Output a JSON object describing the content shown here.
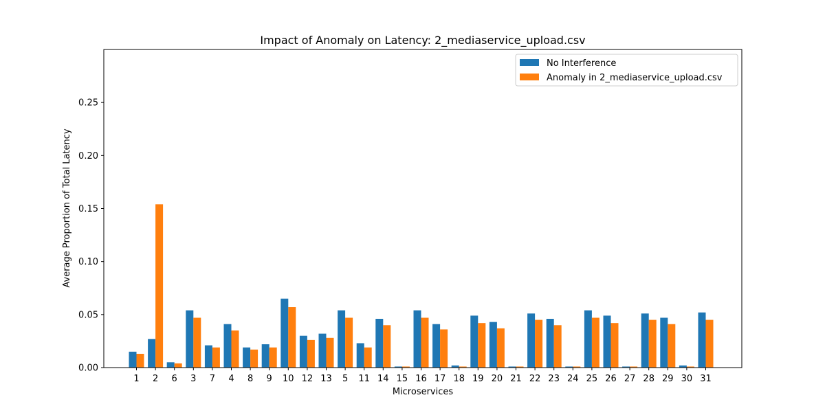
{
  "chart_data": {
    "type": "bar",
    "title": "Impact of Anomaly on Latency: 2_mediaservice_upload.csv",
    "xlabel": "Microservices",
    "ylabel": "Average Proportion of Total Latency",
    "ylim": [
      0,
      0.3
    ],
    "yticks": [
      "0.00",
      "0.05",
      "0.10",
      "0.15",
      "0.20",
      "0.25"
    ],
    "grid": false,
    "legend_position": "top-right",
    "categories": [
      "1",
      "2",
      "6",
      "3",
      "7",
      "4",
      "8",
      "9",
      "10",
      "12",
      "13",
      "5",
      "11",
      "14",
      "15",
      "16",
      "17",
      "18",
      "19",
      "20",
      "21",
      "22",
      "23",
      "24",
      "25",
      "26",
      "27",
      "28",
      "29",
      "30",
      "31"
    ],
    "series": [
      {
        "name": "No Interference",
        "color": "#1f77b4",
        "values": [
          0.015,
          0.027,
          0.005,
          0.054,
          0.021,
          0.041,
          0.019,
          0.022,
          0.065,
          0.03,
          0.032,
          0.054,
          0.023,
          0.046,
          0.001,
          0.054,
          0.041,
          0.002,
          0.049,
          0.043,
          0.001,
          0.051,
          0.046,
          0.001,
          0.054,
          0.049,
          0.001,
          0.051,
          0.047,
          0.002,
          0.052
        ]
      },
      {
        "name": "Anomaly in 2_mediaservice_upload.csv",
        "color": "#ff7f0e",
        "values": [
          0.013,
          0.154,
          0.004,
          0.047,
          0.019,
          0.035,
          0.017,
          0.019,
          0.057,
          0.026,
          0.028,
          0.047,
          0.019,
          0.04,
          0.001,
          0.047,
          0.036,
          0.001,
          0.042,
          0.037,
          0.001,
          0.045,
          0.04,
          0.001,
          0.047,
          0.042,
          0.001,
          0.045,
          0.041,
          0.001,
          0.045
        ]
      }
    ]
  }
}
